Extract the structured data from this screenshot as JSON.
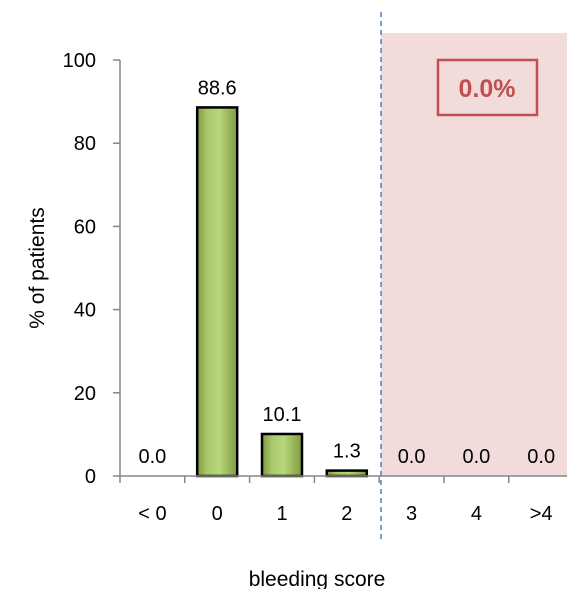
{
  "chart_data": {
    "type": "bar",
    "categories": [
      "< 0",
      "0",
      "1",
      "2",
      "3",
      "4",
      ">4"
    ],
    "values": [
      0.0,
      88.6,
      10.1,
      1.3,
      0.0,
      0.0,
      0.0
    ],
    "data_labels": [
      "0.0",
      "88.6",
      "10.1",
      "1.3",
      "0.0",
      "0.0",
      "0.0"
    ],
    "xlabel": "bleeding score",
    "ylabel": "% of patients",
    "ylim": [
      0,
      100
    ],
    "yticks": [
      "0",
      "20",
      "40",
      "60",
      "80",
      "100"
    ],
    "grid": false,
    "highlight_region": {
      "from_category": "3",
      "to_category": ">4",
      "label": "0.0%",
      "fill_color": "#f2dcdb",
      "label_color": "#c0504d"
    },
    "bar_color": "#9bbb59",
    "bar_highlight_color": "#c3d69b",
    "bar_outline_color": "#000000"
  }
}
